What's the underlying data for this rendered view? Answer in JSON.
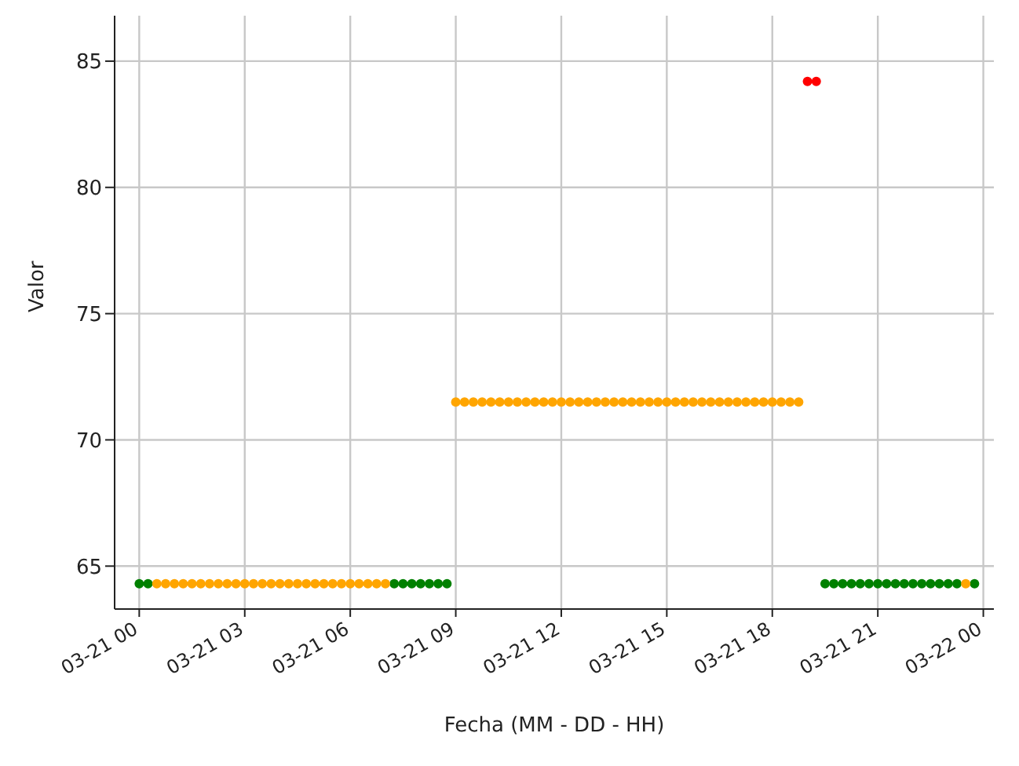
{
  "chart_data": {
    "type": "scatter",
    "xlabel": "Fecha (MM - DD - HH)",
    "ylabel": "Valor",
    "xlim": [
      "--03-20T23:18",
      "--03-22T00:18"
    ],
    "ylim": [
      63.3,
      86.8
    ],
    "xticks": [
      {
        "value": "--03-21T00:00",
        "label": "03-21 00"
      },
      {
        "value": "--03-21T03:00",
        "label": "03-21 03"
      },
      {
        "value": "--03-21T06:00",
        "label": "03-21 06"
      },
      {
        "value": "--03-21T09:00",
        "label": "03-21 09"
      },
      {
        "value": "--03-21T12:00",
        "label": "03-21 12"
      },
      {
        "value": "--03-21T15:00",
        "label": "03-21 15"
      },
      {
        "value": "--03-21T18:00",
        "label": "03-21 18"
      },
      {
        "value": "--03-21T21:00",
        "label": "03-21 21"
      },
      {
        "value": "--03-22T00:00",
        "label": "03-22 00"
      }
    ],
    "yticks": [
      65,
      70,
      75,
      80,
      85
    ],
    "grid": true,
    "marker": "circle",
    "series": [
      {
        "color": "#008000",
        "x": [
          "--03-21T00:00",
          "--03-21T00:15",
          "--03-21T07:15",
          "--03-21T07:30",
          "--03-21T07:45",
          "--03-21T08:00",
          "--03-21T08:15",
          "--03-21T08:30",
          "--03-21T08:45",
          "--03-21T19:30",
          "--03-21T19:45",
          "--03-21T20:00",
          "--03-21T20:15",
          "--03-21T20:30",
          "--03-21T20:45",
          "--03-21T21:00",
          "--03-21T21:15",
          "--03-21T21:30",
          "--03-21T21:45",
          "--03-21T22:00",
          "--03-21T22:15",
          "--03-21T22:30",
          "--03-21T22:45",
          "--03-21T23:00",
          "--03-21T23:15",
          "--03-21T23:45"
        ],
        "values": [
          64.3,
          64.3,
          64.3,
          64.3,
          64.3,
          64.3,
          64.3,
          64.3,
          64.3,
          64.3,
          64.3,
          64.3,
          64.3,
          64.3,
          64.3,
          64.3,
          64.3,
          64.3,
          64.3,
          64.3,
          64.3,
          64.3,
          64.3,
          64.3,
          64.3,
          64.3
        ]
      },
      {
        "color": "#ffa500",
        "x": [
          "--03-21T00:30",
          "--03-21T00:45",
          "--03-21T01:00",
          "--03-21T01:15",
          "--03-21T01:30",
          "--03-21T01:45",
          "--03-21T02:00",
          "--03-21T02:15",
          "--03-21T02:30",
          "--03-21T02:45",
          "--03-21T03:00",
          "--03-21T03:15",
          "--03-21T03:30",
          "--03-21T03:45",
          "--03-21T04:00",
          "--03-21T04:15",
          "--03-21T04:30",
          "--03-21T04:45",
          "--03-21T05:00",
          "--03-21T05:15",
          "--03-21T05:30",
          "--03-21T05:45",
          "--03-21T06:00",
          "--03-21T06:15",
          "--03-21T06:30",
          "--03-21T06:45",
          "--03-21T07:00",
          "--03-21T09:00",
          "--03-21T09:15",
          "--03-21T09:30",
          "--03-21T09:45",
          "--03-21T10:00",
          "--03-21T10:15",
          "--03-21T10:30",
          "--03-21T10:45",
          "--03-21T11:00",
          "--03-21T11:15",
          "--03-21T11:30",
          "--03-21T11:45",
          "--03-21T12:00",
          "--03-21T12:15",
          "--03-21T12:30",
          "--03-21T12:45",
          "--03-21T13:00",
          "--03-21T13:15",
          "--03-21T13:30",
          "--03-21T13:45",
          "--03-21T14:00",
          "--03-21T14:15",
          "--03-21T14:30",
          "--03-21T14:45",
          "--03-21T15:00",
          "--03-21T15:15",
          "--03-21T15:30",
          "--03-21T15:45",
          "--03-21T16:00",
          "--03-21T16:15",
          "--03-21T16:30",
          "--03-21T16:45",
          "--03-21T17:00",
          "--03-21T17:15",
          "--03-21T17:30",
          "--03-21T17:45",
          "--03-21T18:00",
          "--03-21T18:15",
          "--03-21T18:30",
          "--03-21T18:45",
          "--03-21T23:30"
        ],
        "values": [
          64.3,
          64.3,
          64.3,
          64.3,
          64.3,
          64.3,
          64.3,
          64.3,
          64.3,
          64.3,
          64.3,
          64.3,
          64.3,
          64.3,
          64.3,
          64.3,
          64.3,
          64.3,
          64.3,
          64.3,
          64.3,
          64.3,
          64.3,
          64.3,
          64.3,
          64.3,
          64.3,
          71.5,
          71.5,
          71.5,
          71.5,
          71.5,
          71.5,
          71.5,
          71.5,
          71.5,
          71.5,
          71.5,
          71.5,
          71.5,
          71.5,
          71.5,
          71.5,
          71.5,
          71.5,
          71.5,
          71.5,
          71.5,
          71.5,
          71.5,
          71.5,
          71.5,
          71.5,
          71.5,
          71.5,
          71.5,
          71.5,
          71.5,
          71.5,
          71.5,
          71.5,
          71.5,
          71.5,
          71.5,
          71.5,
          71.5,
          71.5,
          64.3
        ]
      },
      {
        "color": "#ff0000",
        "x": [
          "--03-21T19:00",
          "--03-21T19:15"
        ],
        "values": [
          84.2,
          84.2
        ]
      }
    ]
  }
}
